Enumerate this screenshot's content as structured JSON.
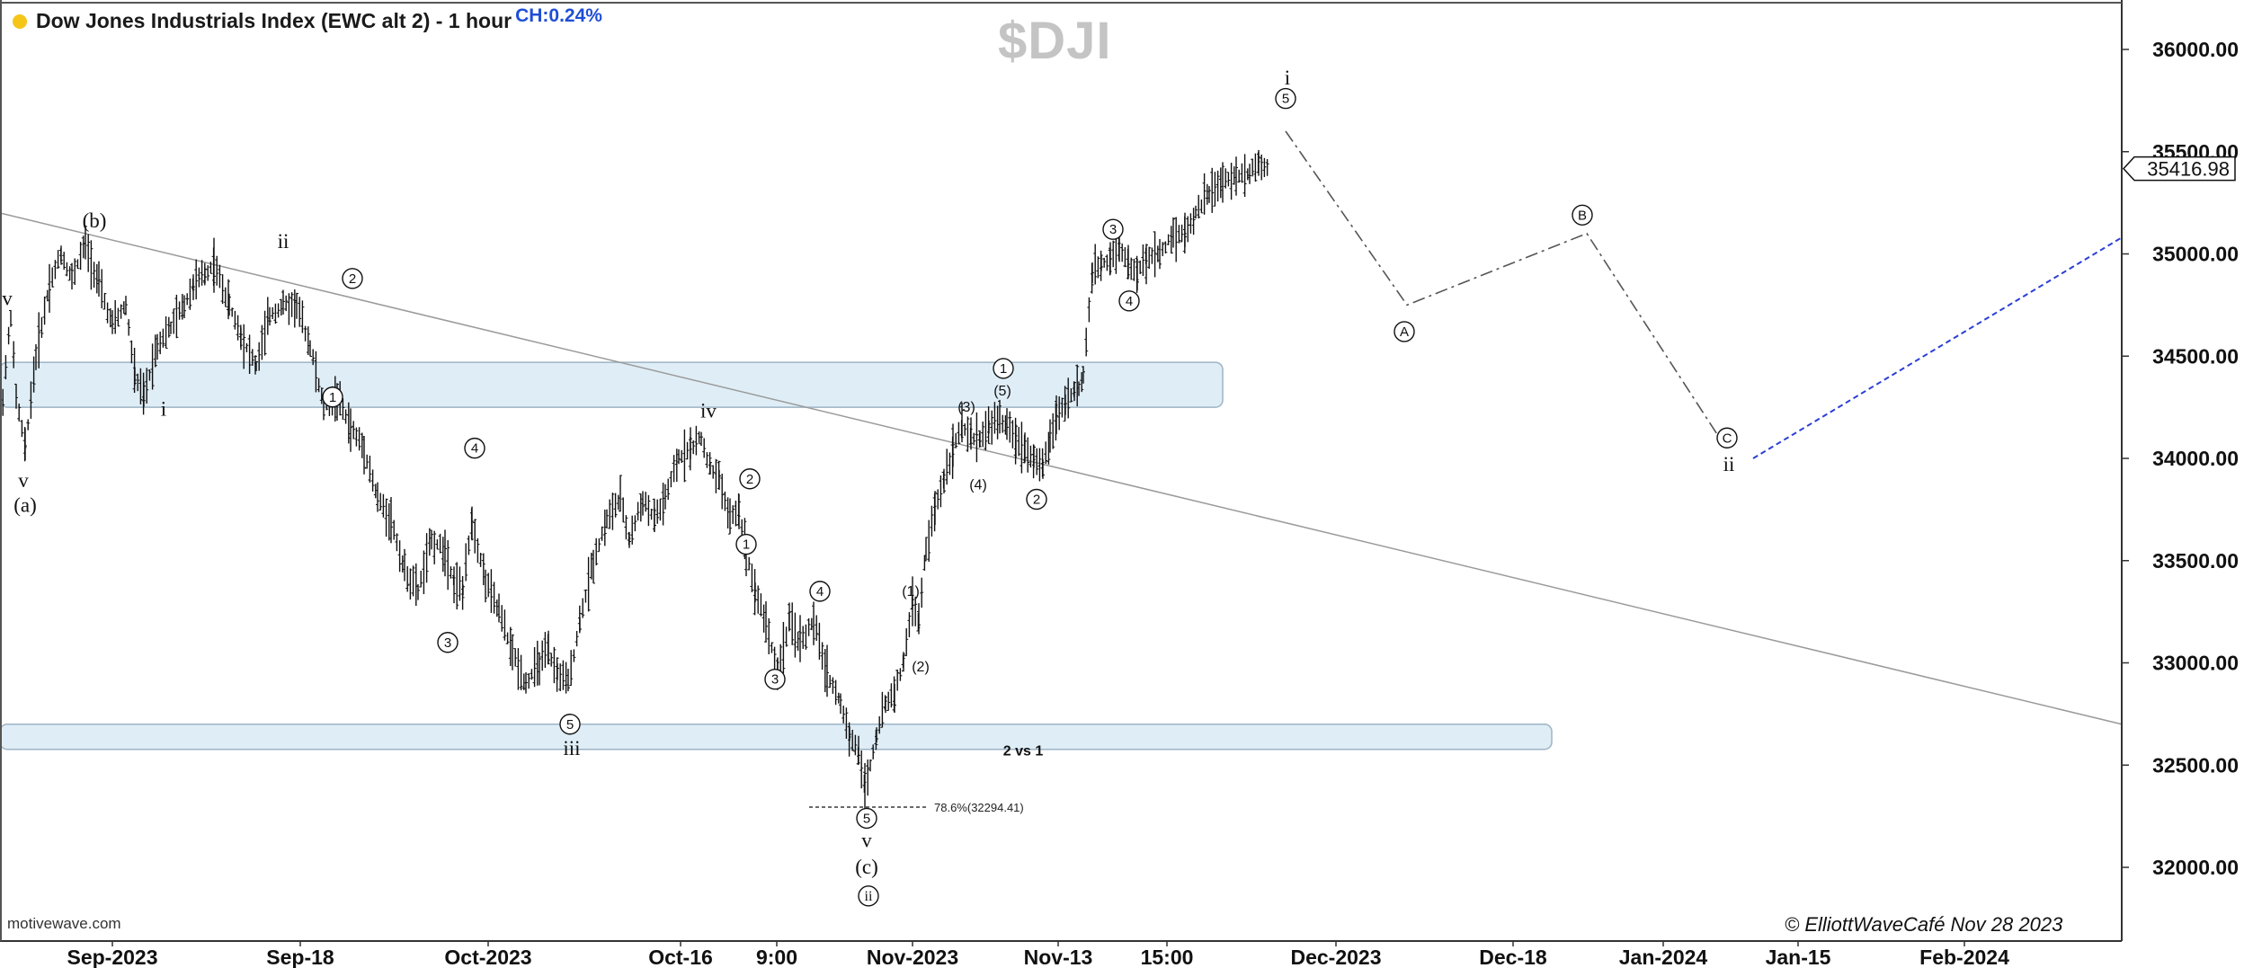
{
  "header": {
    "title": "Dow Jones Industrials Index (EWC alt 2) - 1 hour",
    "change": "CH:0.24%",
    "symbol": "$DJI",
    "status_color": "#f5c518"
  },
  "footer": {
    "source": "motivewave.com",
    "copyright": "© ElliottWaveCafé Nov 28 2023"
  },
  "chart_data": {
    "type": "bar",
    "subtype": "ohlc-hourly",
    "x_axis_labels": [
      "Sep-2023",
      "Sep-18",
      "Oct-2023",
      "Oct-16",
      "9:00",
      "Nov-2023",
      "Nov-13",
      "15:00",
      "Dec-2023",
      "Dec-18",
      "Jan-2024",
      "Jan-15",
      "Feb-2024"
    ],
    "y_axis": {
      "ticks": [
        "32000.00",
        "32500.00",
        "33000.00",
        "33500.00",
        "34000.00",
        "34500.00",
        "35000.00",
        "35500.00",
        "36000.00"
      ],
      "ylim": [
        31750,
        36200
      ],
      "last_price": "35416.98"
    },
    "price_path": [
      [
        0,
        34150
      ],
      [
        12,
        34700
      ],
      [
        18,
        34300
      ],
      [
        28,
        34050
      ],
      [
        40,
        34500
      ],
      [
        55,
        34850
      ],
      [
        68,
        35000
      ],
      [
        80,
        34880
      ],
      [
        95,
        35050
      ],
      [
        110,
        34850
      ],
      [
        125,
        34650
      ],
      [
        140,
        34750
      ],
      [
        150,
        34400
      ],
      [
        160,
        34300
      ],
      [
        175,
        34560
      ],
      [
        190,
        34640
      ],
      [
        205,
        34750
      ],
      [
        215,
        34850
      ],
      [
        228,
        34900
      ],
      [
        238,
        34950
      ],
      [
        255,
        34750
      ],
      [
        268,
        34600
      ],
      [
        285,
        34450
      ],
      [
        300,
        34700
      ],
      [
        315,
        34750
      ],
      [
        330,
        34750
      ],
      [
        345,
        34550
      ],
      [
        360,
        34250
      ],
      [
        375,
        34300
      ],
      [
        390,
        34150
      ],
      [
        405,
        34050
      ],
      [
        420,
        33800
      ],
      [
        435,
        33700
      ],
      [
        450,
        33450
      ],
      [
        465,
        33350
      ],
      [
        480,
        33600
      ],
      [
        495,
        33550
      ],
      [
        505,
        33400
      ],
      [
        515,
        33350
      ],
      [
        525,
        33700
      ],
      [
        540,
        33400
      ],
      [
        555,
        33250
      ],
      [
        570,
        33050
      ],
      [
        585,
        32900
      ],
      [
        600,
        33000
      ],
      [
        610,
        33050
      ],
      [
        620,
        32950
      ],
      [
        632,
        32900
      ],
      [
        645,
        33200
      ],
      [
        660,
        33500
      ],
      [
        675,
        33700
      ],
      [
        690,
        33800
      ],
      [
        700,
        33600
      ],
      [
        715,
        33800
      ],
      [
        728,
        33700
      ],
      [
        740,
        33800
      ],
      [
        755,
        34000
      ],
      [
        768,
        34050
      ],
      [
        780,
        34100
      ],
      [
        790,
        33950
      ],
      [
        800,
        33900
      ],
      [
        812,
        33700
      ],
      [
        822,
        33750
      ],
      [
        830,
        33550
      ],
      [
        840,
        33350
      ],
      [
        852,
        33200
      ],
      [
        865,
        32950
      ],
      [
        878,
        33200
      ],
      [
        890,
        33100
      ],
      [
        905,
        33200
      ],
      [
        920,
        32950
      ],
      [
        935,
        32800
      ],
      [
        945,
        32650
      ],
      [
        955,
        32550
      ],
      [
        962,
        32400
      ],
      [
        968,
        32500
      ],
      [
        975,
        32650
      ],
      [
        985,
        32800
      ],
      [
        995,
        32850
      ],
      [
        1005,
        33000
      ],
      [
        1015,
        33300
      ],
      [
        1022,
        33200
      ],
      [
        1030,
        33550
      ],
      [
        1040,
        33750
      ],
      [
        1050,
        33900
      ],
      [
        1060,
        34050
      ],
      [
        1070,
        34150
      ],
      [
        1080,
        34100
      ],
      [
        1090,
        34100
      ],
      [
        1100,
        34150
      ],
      [
        1112,
        34200
      ],
      [
        1120,
        34150
      ],
      [
        1130,
        34100
      ],
      [
        1140,
        34050
      ],
      [
        1150,
        34000
      ],
      [
        1160,
        33950
      ],
      [
        1168,
        34100
      ],
      [
        1175,
        34200
      ],
      [
        1185,
        34280
      ],
      [
        1195,
        34330
      ],
      [
        1200,
        34350
      ],
      [
        1205,
        34400
      ],
      [
        1215,
        34900
      ],
      [
        1225,
        34950
      ],
      [
        1235,
        34980
      ],
      [
        1245,
        35050
      ],
      [
        1255,
        34950
      ],
      [
        1265,
        34900
      ],
      [
        1275,
        34980
      ],
      [
        1290,
        35000
      ],
      [
        1305,
        35100
      ],
      [
        1318,
        35100
      ],
      [
        1330,
        35200
      ],
      [
        1345,
        35300
      ],
      [
        1360,
        35350
      ],
      [
        1375,
        35380
      ],
      [
        1390,
        35400
      ],
      [
        1400,
        35450
      ],
      [
        1410,
        35420
      ]
    ],
    "support_zones": [
      {
        "from": 34250,
        "to": 34470
      },
      {
        "from": 32580,
        "to": 32700
      }
    ],
    "trendline": {
      "start": [
        0,
        35200
      ],
      "end": [
        2360,
        32700
      ]
    },
    "projection_solid_dashdot": [
      [
        1430,
        35600
      ],
      [
        1565,
        34750
      ],
      [
        1765,
        35100
      ],
      [
        1920,
        34050
      ]
    ],
    "projection_dashed_blue": [
      [
        1950,
        34000
      ],
      [
        2360,
        35080
      ]
    ],
    "fib_level": {
      "label": "78.6%(32294.41)",
      "price": 32294.41
    },
    "annotations": [
      {
        "text": "v",
        "style": "roman",
        "x": 8,
        "price": 34780
      },
      {
        "text": "v",
        "style": "roman",
        "x": 26,
        "price": 33890
      },
      {
        "text": "(a)",
        "style": "roman",
        "x": 28,
        "price": 33770
      },
      {
        "text": "(b)",
        "style": "roman",
        "x": 105,
        "price": 35160
      },
      {
        "text": "ii",
        "style": "roman",
        "x": 315,
        "price": 35060
      },
      {
        "text": "2",
        "style": "circle",
        "x": 392,
        "price": 34880
      },
      {
        "text": "i",
        "style": "roman",
        "x": 182,
        "price": 34240
      },
      {
        "text": "1",
        "style": "circle",
        "x": 370,
        "price": 34300
      },
      {
        "text": "4",
        "style": "circle",
        "x": 528,
        "price": 34050
      },
      {
        "text": "3",
        "style": "circle",
        "x": 498,
        "price": 33100
      },
      {
        "text": "iv",
        "style": "roman",
        "x": 788,
        "price": 34230
      },
      {
        "text": "2",
        "style": "circle",
        "x": 834,
        "price": 33900
      },
      {
        "text": "1",
        "style": "circle",
        "x": 830,
        "price": 33580
      },
      {
        "text": "4",
        "style": "circle",
        "x": 912,
        "price": 33350
      },
      {
        "text": "3",
        "style": "circle",
        "x": 862,
        "price": 32920
      },
      {
        "text": "5",
        "style": "circle",
        "x": 634,
        "price": 32700
      },
      {
        "text": "iii",
        "style": "roman",
        "x": 636,
        "price": 32580
      },
      {
        "text": "5",
        "style": "circle",
        "x": 964,
        "price": 32240
      },
      {
        "text": "v",
        "style": "roman",
        "x": 964,
        "price": 32130
      },
      {
        "text": "(c)",
        "style": "roman",
        "x": 964,
        "price": 32000
      },
      {
        "text": "ii",
        "style": "circle-roman",
        "x": 966,
        "price": 31860
      },
      {
        "text": "(1)",
        "style": "small",
        "x": 1013,
        "price": 33350
      },
      {
        "text": "(2)",
        "style": "small",
        "x": 1024,
        "price": 32980
      },
      {
        "text": "(3)",
        "style": "small",
        "x": 1075,
        "price": 34250
      },
      {
        "text": "(4)",
        "style": "small",
        "x": 1088,
        "price": 33870
      },
      {
        "text": "(5)",
        "style": "small",
        "x": 1115,
        "price": 34330
      },
      {
        "text": "1",
        "style": "circle",
        "x": 1116,
        "price": 34440
      },
      {
        "text": "2",
        "style": "circle",
        "x": 1153,
        "price": 33800
      },
      {
        "text": "2 vs 1",
        "style": "bold-small",
        "x": 1138,
        "price": 32570
      },
      {
        "text": "3",
        "style": "circle",
        "x": 1238,
        "price": 35120
      },
      {
        "text": "4",
        "style": "circle",
        "x": 1256,
        "price": 34770
      },
      {
        "text": "i",
        "style": "roman",
        "x": 1432,
        "price": 35860
      },
      {
        "text": "5",
        "style": "circle",
        "x": 1430,
        "price": 35760
      },
      {
        "text": "A",
        "style": "circle",
        "x": 1562,
        "price": 34620
      },
      {
        "text": "B",
        "style": "circle",
        "x": 1760,
        "price": 35190
      },
      {
        "text": "C",
        "style": "circle",
        "x": 1921,
        "price": 34100
      },
      {
        "text": "ii",
        "style": "roman",
        "x": 1923,
        "price": 33970
      }
    ]
  }
}
